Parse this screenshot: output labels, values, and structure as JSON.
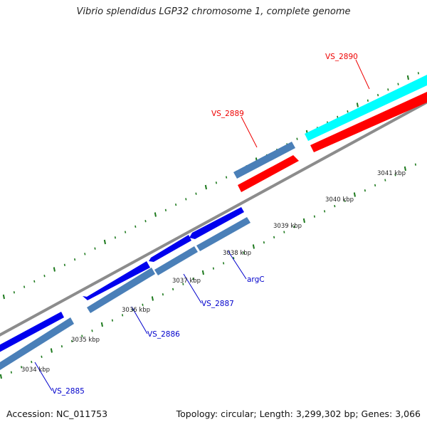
{
  "title": "Vibrio splendidus LGP32 chromosome 1, complete genome",
  "footer": {
    "accession": "Accession: NC_011753",
    "summary": "Topology: circular; Length: 3,299,302 bp; Genes: 3,066"
  },
  "colors": {
    "backbone": "#8c8c8c",
    "tick": "#1e7a1e",
    "gene_blue": "#0000ee",
    "gene_steelblue": "#4a7fb8",
    "gene_red": "#ff0000",
    "gene_cyan": "#00ffff",
    "label_blue": "#0000cc",
    "label_red": "#ee0000"
  },
  "scale_labels": [
    "3034 kbp",
    "3035 kbp",
    "3036 kbp",
    "3037 kbp",
    "3038 kbp",
    "3039 kbp",
    "3040 kbp",
    "3041 kbp"
  ],
  "gene_labels": {
    "blue": [
      "VS_2885",
      "VS_2886",
      "VS_2887",
      "argC"
    ],
    "red": [
      "VS_2889",
      "VS_2890"
    ]
  }
}
